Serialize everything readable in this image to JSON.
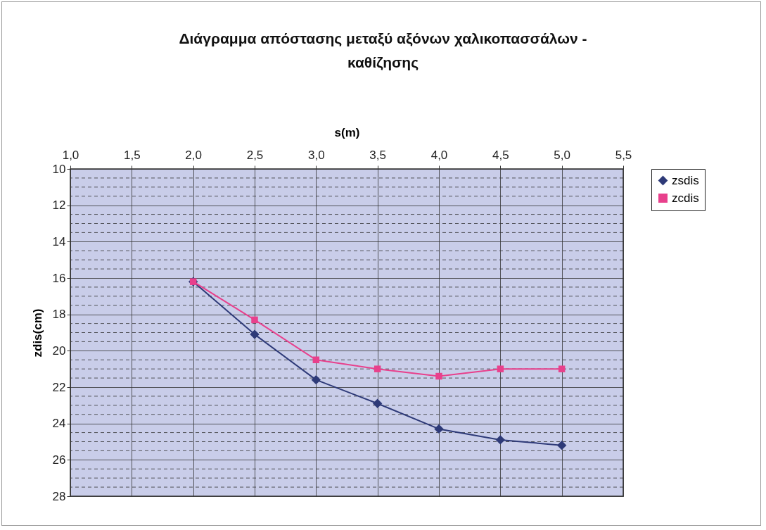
{
  "chart_data": {
    "type": "line",
    "title": "Διάγραμμα απόστασης μεταξύ αξόνων χαλικοπασσάλων - καθίζησης",
    "xlabel": "s(m)",
    "ylabel": "zdis(cm)",
    "x": [
      2.0,
      2.5,
      3.0,
      3.5,
      4.0,
      4.5,
      5.0
    ],
    "series": [
      {
        "name": "zsdis",
        "color": "#2e3a78",
        "marker": "diamond",
        "values": [
          16.2,
          19.1,
          21.6,
          22.9,
          24.3,
          24.9,
          25.2
        ]
      },
      {
        "name": "zcdis",
        "color": "#e8408c",
        "marker": "square",
        "values": [
          16.2,
          18.3,
          20.5,
          21.0,
          21.4,
          21.0,
          21.0
        ]
      }
    ],
    "xlim": [
      1.0,
      5.5
    ],
    "xticks": [
      {
        "value": 1.0,
        "label": "1,0"
      },
      {
        "value": 1.5,
        "label": "1,5"
      },
      {
        "value": 2.0,
        "label": "2,0"
      },
      {
        "value": 2.5,
        "label": "2,5"
      },
      {
        "value": 3.0,
        "label": "3,0"
      },
      {
        "value": 3.5,
        "label": "3,5"
      },
      {
        "value": 4.0,
        "label": "4,0"
      },
      {
        "value": 4.5,
        "label": "4,5"
      },
      {
        "value": 5.0,
        "label": "5,0"
      },
      {
        "value": 5.5,
        "label": "5,5"
      }
    ],
    "ylim": [
      28,
      10
    ],
    "yticks": [
      10,
      {
        "value": 10.5,
        "label": null
      },
      {
        "value": 11,
        "label": null
      },
      {
        "value": 11.5,
        "label": null
      },
      12,
      {
        "value": 12.5,
        "label": null
      },
      {
        "value": 13,
        "label": null
      },
      {
        "value": 13.5,
        "label": null
      },
      14,
      {
        "value": 14.5,
        "label": null
      },
      {
        "value": 15,
        "label": null
      },
      {
        "value": 15.5,
        "label": null
      },
      16,
      {
        "value": 16.5,
        "label": null
      },
      {
        "value": 17,
        "label": null
      },
      {
        "value": 17.5,
        "label": null
      },
      18,
      {
        "value": 18.5,
        "label": null
      },
      {
        "value": 19,
        "label": null
      },
      {
        "value": 19.5,
        "label": null
      },
      20,
      {
        "value": 20.5,
        "label": null
      },
      {
        "value": 21,
        "label": null
      },
      {
        "value": 21.5,
        "label": null
      },
      22,
      {
        "value": 22.5,
        "label": null
      },
      {
        "value": 23,
        "label": null
      },
      {
        "value": 23.5,
        "label": null
      },
      24,
      {
        "value": 24.5,
        "label": null
      },
      {
        "value": 25,
        "label": null
      },
      {
        "value": 25.5,
        "label": null
      },
      26,
      {
        "value": 26.5,
        "label": null
      },
      {
        "value": 27,
        "label": null
      },
      {
        "value": 27.5,
        "label": null
      },
      28
    ],
    "grid": true,
    "legend": "right"
  }
}
